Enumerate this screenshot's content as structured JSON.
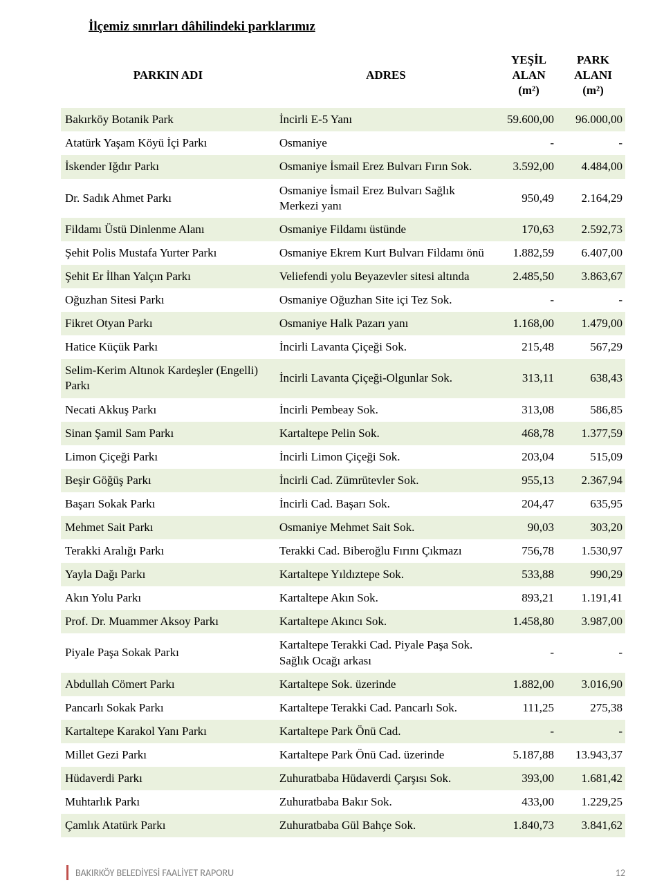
{
  "title": "İlçemiz sınırları dâhilindeki parklarımız",
  "headers": {
    "name": "PARKIN ADI",
    "address": "ADRES",
    "green": "YEŞİL ALAN (m²)",
    "park_area": "PARK ALANI (m²)"
  },
  "rows": [
    {
      "name": "Bakırköy Botanik Park",
      "address": "İncirli E-5 Yanı",
      "green": "59.600,00",
      "area": "96.000,00"
    },
    {
      "name": "Atatürk Yaşam Köyü İçi Parkı",
      "address": "Osmaniye",
      "green": "-",
      "area": "-"
    },
    {
      "name": "İskender Iğdır Parkı",
      "address": "Osmaniye İsmail Erez Bulvarı Fırın Sok.",
      "green": "3.592,00",
      "area": "4.484,00"
    },
    {
      "name": "Dr. Sadık Ahmet Parkı",
      "address": "Osmaniye İsmail Erez Bulvarı Sağlık Merkezi yanı",
      "green": "950,49",
      "area": "2.164,29"
    },
    {
      "name": "Fildamı Üstü Dinlenme Alanı",
      "address": "Osmaniye Fildamı üstünde",
      "green": "170,63",
      "area": "2.592,73"
    },
    {
      "name": "Şehit Polis Mustafa Yurter Parkı",
      "address": "Osmaniye Ekrem Kurt Bulvarı Fildamı önü",
      "green": "1.882,59",
      "area": "6.407,00"
    },
    {
      "name": "Şehit Er İlhan Yalçın Parkı",
      "address": "Veliefendi yolu Beyazevler sitesi altında",
      "green": "2.485,50",
      "area": "3.863,67"
    },
    {
      "name": "Oğuzhan Sitesi Parkı",
      "address": "Osmaniye Oğuzhan Site içi Tez Sok.",
      "green": "-",
      "area": "-"
    },
    {
      "name": "Fikret Otyan Parkı",
      "address": "Osmaniye Halk Pazarı yanı",
      "green": "1.168,00",
      "area": "1.479,00"
    },
    {
      "name": "Hatice Küçük Parkı",
      "address": "İncirli Lavanta Çiçeği Sok.",
      "green": "215,48",
      "area": "567,29"
    },
    {
      "name": "Selim-Kerim Altınok Kardeşler (Engelli) Parkı",
      "address": "İncirli Lavanta Çiçeği-Olgunlar Sok.",
      "green": "313,11",
      "area": "638,43"
    },
    {
      "name": "Necati Akkuş Parkı",
      "address": "İncirli Pembeay Sok.",
      "green": "313,08",
      "area": "586,85"
    },
    {
      "name": "Sinan Şamil Sam Parkı",
      "address": "Kartaltepe Pelin Sok.",
      "green": "468,78",
      "area": "1.377,59"
    },
    {
      "name": "Limon Çiçeği Parkı",
      "address": "İncirli Limon Çiçeği Sok.",
      "green": "203,04",
      "area": "515,09"
    },
    {
      "name": "Beşir Göğüş Parkı",
      "address": "İncirli Cad. Zümrütevler Sok.",
      "green": "955,13",
      "area": "2.367,94"
    },
    {
      "name": "Başarı Sokak Parkı",
      "address": "İncirli Cad. Başarı Sok.",
      "green": "204,47",
      "area": "635,95"
    },
    {
      "name": "Mehmet Sait Parkı",
      "address": "Osmaniye Mehmet Sait Sok.",
      "green": "90,03",
      "area": "303,20"
    },
    {
      "name": "Terakki Aralığı Parkı",
      "address": "Terakki Cad. Biberoğlu Fırını Çıkmazı",
      "green": "756,78",
      "area": "1.530,97"
    },
    {
      "name": "Yayla Dağı Parkı",
      "address": "Kartaltepe Yıldıztepe Sok.",
      "green": "533,88",
      "area": "990,29"
    },
    {
      "name": "Akın Yolu Parkı",
      "address": "Kartaltepe Akın Sok.",
      "green": "893,21",
      "area": "1.191,41"
    },
    {
      "name": "Prof. Dr. Muammer Aksoy Parkı",
      "address": "Kartaltepe Akıncı Sok.",
      "green": "1.458,80",
      "area": "3.987,00"
    },
    {
      "name": "Piyale Paşa Sokak Parkı",
      "address": "Kartaltepe Terakki Cad. Piyale Paşa Sok. Sağlık Ocağı arkası",
      "green": "-",
      "area": "-"
    },
    {
      "name": "Abdullah Cömert Parkı",
      "address": "Kartaltepe Sok. üzerinde",
      "green": "1.882,00",
      "area": "3.016,90"
    },
    {
      "name": "Pancarlı Sokak Parkı",
      "address": "Kartaltepe Terakki Cad. Pancarlı Sok.",
      "green": "111,25",
      "area": "275,38"
    },
    {
      "name": "Kartaltepe Karakol Yanı Parkı",
      "address": "Kartaltepe Park Önü Cad.",
      "green": "-",
      "area": "-"
    },
    {
      "name": "Millet Gezi Parkı",
      "address": "Kartaltepe Park Önü Cad. üzerinde",
      "green": "5.187,88",
      "area": "13.943,37"
    },
    {
      "name": "Hüdaverdi Parkı",
      "address": "Zuhuratbaba Hüdaverdi Çarşısı Sok.",
      "green": "393,00",
      "area": "1.681,42"
    },
    {
      "name": "Muhtarlık Parkı",
      "address": "Zuhuratbaba Bakır Sok.",
      "green": "433,00",
      "area": "1.229,25"
    },
    {
      "name": "Çamlık Atatürk Parkı",
      "address": "Zuhuratbaba Gül Bahçe Sok.",
      "green": "1.840,73",
      "area": "3.841,62"
    }
  ],
  "footer": {
    "label": "BAKIRKÖY BELEDİYESİ FAALİYET RAPORU",
    "page": "12"
  },
  "colors": {
    "row_odd_bg": "#eaf1de",
    "row_even_bg": "#ffffff",
    "footer_bar": "#c0504d",
    "footer_text": "#7f7f7f"
  }
}
